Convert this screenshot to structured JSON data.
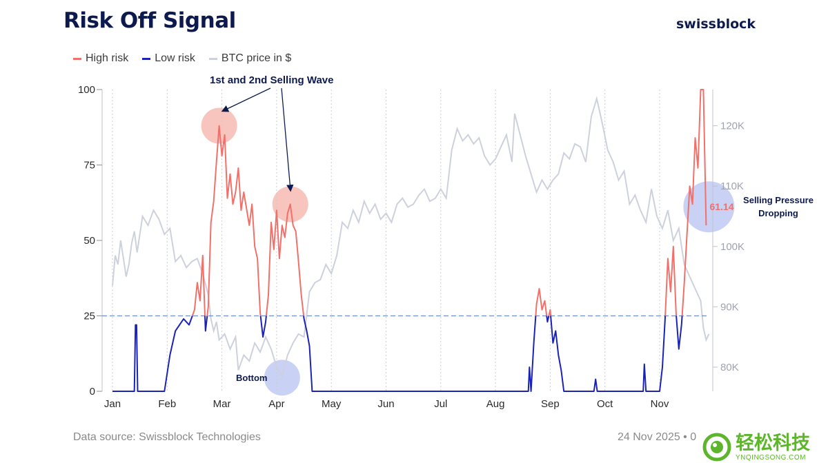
{
  "header": {
    "title": "Risk Off Signal",
    "brand": "swissblock"
  },
  "legend": [
    {
      "label": "High risk",
      "color": "#f0706a"
    },
    {
      "label": "Low risk",
      "color": "#1a23b4"
    },
    {
      "label": "BTC price in $",
      "color": "#cdd1dc"
    }
  ],
  "footer": {
    "source": "Data source: Swissblock Technologies",
    "date": "24 Nov 2025 • 0"
  },
  "watermark": {
    "cn": "轻松科技",
    "en": "YNQINGSONG.COM"
  },
  "chart_data": {
    "type": "line",
    "x_labels": [
      "Jan",
      "Feb",
      "Mar",
      "Apr",
      "May",
      "Jun",
      "Jul",
      "Aug",
      "Sep",
      "Oct",
      "Nov"
    ],
    "left_axis": {
      "ticks": [
        "0",
        "25",
        "50",
        "75",
        "100"
      ],
      "range": [
        0,
        100
      ]
    },
    "right_axis": {
      "ticks": [
        "80K",
        "90K",
        "100K",
        "110K",
        "120K"
      ],
      "range": [
        76000,
        126000
      ]
    },
    "threshold": 25,
    "risk_signal_points": [
      [
        0.0,
        0
      ],
      [
        0.4,
        0
      ],
      [
        0.42,
        22
      ],
      [
        0.44,
        22
      ],
      [
        0.46,
        0
      ],
      [
        0.95,
        0
      ],
      [
        1.05,
        12
      ],
      [
        1.15,
        20
      ],
      [
        1.3,
        24
      ],
      [
        1.4,
        22
      ],
      [
        1.5,
        27
      ],
      [
        1.55,
        36
      ],
      [
        1.6,
        30
      ],
      [
        1.65,
        45
      ],
      [
        1.7,
        20
      ],
      [
        1.75,
        28
      ],
      [
        1.8,
        56
      ],
      [
        1.85,
        63
      ],
      [
        1.9,
        76
      ],
      [
        1.95,
        88
      ],
      [
        2.0,
        78
      ],
      [
        2.05,
        85
      ],
      [
        2.1,
        64
      ],
      [
        2.15,
        72
      ],
      [
        2.2,
        62
      ],
      [
        2.25,
        66
      ],
      [
        2.3,
        74
      ],
      [
        2.35,
        60
      ],
      [
        2.4,
        66
      ],
      [
        2.5,
        55
      ],
      [
        2.55,
        62
      ],
      [
        2.6,
        48
      ],
      [
        2.65,
        44
      ],
      [
        2.7,
        26
      ],
      [
        2.75,
        18
      ],
      [
        2.8,
        23
      ],
      [
        2.85,
        32
      ],
      [
        2.9,
        56
      ],
      [
        2.95,
        47
      ],
      [
        3.0,
        60
      ],
      [
        3.05,
        44
      ],
      [
        3.1,
        55
      ],
      [
        3.15,
        51
      ],
      [
        3.2,
        59
      ],
      [
        3.25,
        62
      ],
      [
        3.3,
        55
      ],
      [
        3.35,
        53
      ],
      [
        3.4,
        43
      ],
      [
        3.45,
        32
      ],
      [
        3.5,
        24
      ],
      [
        3.55,
        20
      ],
      [
        3.6,
        15
      ],
      [
        3.65,
        0
      ],
      [
        7.6,
        0
      ],
      [
        7.62,
        8
      ],
      [
        7.65,
        0
      ],
      [
        7.7,
        16
      ],
      [
        7.75,
        29
      ],
      [
        7.8,
        34
      ],
      [
        7.85,
        27
      ],
      [
        7.9,
        30
      ],
      [
        7.95,
        23
      ],
      [
        8.0,
        27
      ],
      [
        8.05,
        16
      ],
      [
        8.1,
        20
      ],
      [
        8.15,
        12
      ],
      [
        8.2,
        7
      ],
      [
        8.25,
        0
      ],
      [
        8.8,
        0
      ],
      [
        8.83,
        4
      ],
      [
        8.86,
        0
      ],
      [
        9.7,
        0
      ],
      [
        9.72,
        9
      ],
      [
        9.75,
        0
      ],
      [
        10.0,
        0
      ],
      [
        10.05,
        8
      ],
      [
        10.1,
        24
      ],
      [
        10.15,
        44
      ],
      [
        10.2,
        33
      ],
      [
        10.25,
        48
      ],
      [
        10.3,
        26
      ],
      [
        10.35,
        14
      ],
      [
        10.4,
        22
      ],
      [
        10.45,
        36
      ],
      [
        10.5,
        52
      ],
      [
        10.55,
        68
      ],
      [
        10.6,
        62
      ],
      [
        10.65,
        84
      ],
      [
        10.7,
        74
      ],
      [
        10.75,
        100
      ],
      [
        10.8,
        100
      ],
      [
        10.85,
        55
      ]
    ],
    "btc_price_points": [
      [
        0.0,
        93500
      ],
      [
        0.05,
        98500
      ],
      [
        0.1,
        97000
      ],
      [
        0.15,
        101000
      ],
      [
        0.2,
        98000
      ],
      [
        0.25,
        95000
      ],
      [
        0.3,
        97000
      ],
      [
        0.35,
        100500
      ],
      [
        0.4,
        102500
      ],
      [
        0.45,
        99000
      ],
      [
        0.55,
        105000
      ],
      [
        0.65,
        103500
      ],
      [
        0.75,
        106000
      ],
      [
        0.85,
        104500
      ],
      [
        0.95,
        102000
      ],
      [
        1.05,
        103000
      ],
      [
        1.15,
        97500
      ],
      [
        1.25,
        98500
      ],
      [
        1.35,
        96500
      ],
      [
        1.45,
        97500
      ],
      [
        1.55,
        98000
      ],
      [
        1.65,
        95500
      ],
      [
        1.75,
        92000
      ],
      [
        1.8,
        88000
      ],
      [
        1.85,
        86000
      ],
      [
        1.9,
        87500
      ],
      [
        1.95,
        84500
      ],
      [
        2.05,
        85500
      ],
      [
        2.15,
        83000
      ],
      [
        2.25,
        85000
      ],
      [
        2.3,
        79500
      ],
      [
        2.4,
        82000
      ],
      [
        2.5,
        81000
      ],
      [
        2.6,
        84000
      ],
      [
        2.7,
        82500
      ],
      [
        2.8,
        85000
      ],
      [
        2.9,
        83000
      ],
      [
        3.0,
        80000
      ],
      [
        3.1,
        78500
      ],
      [
        3.2,
        82000
      ],
      [
        3.3,
        84000
      ],
      [
        3.4,
        85500
      ],
      [
        3.5,
        85000
      ],
      [
        3.6,
        92500
      ],
      [
        3.7,
        94000
      ],
      [
        3.8,
        94500
      ],
      [
        3.9,
        97000
      ],
      [
        4.0,
        95500
      ],
      [
        4.1,
        98500
      ],
      [
        4.2,
        104000
      ],
      [
        4.3,
        103000
      ],
      [
        4.4,
        106000
      ],
      [
        4.5,
        104000
      ],
      [
        4.6,
        107500
      ],
      [
        4.7,
        105500
      ],
      [
        4.8,
        107000
      ],
      [
        4.9,
        104500
      ],
      [
        5.0,
        105500
      ],
      [
        5.1,
        104000
      ],
      [
        5.2,
        107000
      ],
      [
        5.3,
        108000
      ],
      [
        5.4,
        106500
      ],
      [
        5.5,
        107000
      ],
      [
        5.6,
        108500
      ],
      [
        5.7,
        109500
      ],
      [
        5.8,
        107500
      ],
      [
        5.9,
        108000
      ],
      [
        6.0,
        109500
      ],
      [
        6.1,
        108000
      ],
      [
        6.2,
        116000
      ],
      [
        6.3,
        119500
      ],
      [
        6.4,
        117500
      ],
      [
        6.5,
        118500
      ],
      [
        6.6,
        117000
      ],
      [
        6.7,
        118000
      ],
      [
        6.8,
        115000
      ],
      [
        6.9,
        113500
      ],
      [
        7.0,
        114500
      ],
      [
        7.1,
        116500
      ],
      [
        7.2,
        118500
      ],
      [
        7.3,
        114000
      ],
      [
        7.35,
        122000
      ],
      [
        7.45,
        118500
      ],
      [
        7.55,
        115000
      ],
      [
        7.65,
        112000
      ],
      [
        7.75,
        109000
      ],
      [
        7.85,
        111000
      ],
      [
        7.95,
        109500
      ],
      [
        8.05,
        111000
      ],
      [
        8.15,
        112000
      ],
      [
        8.25,
        115500
      ],
      [
        8.35,
        114500
      ],
      [
        8.45,
        117000
      ],
      [
        8.55,
        116500
      ],
      [
        8.65,
        114000
      ],
      [
        8.75,
        121500
      ],
      [
        8.85,
        124500
      ],
      [
        8.95,
        120500
      ],
      [
        9.05,
        116000
      ],
      [
        9.15,
        114000
      ],
      [
        9.25,
        111000
      ],
      [
        9.35,
        112500
      ],
      [
        9.45,
        107000
      ],
      [
        9.55,
        108500
      ],
      [
        9.65,
        106000
      ],
      [
        9.75,
        104000
      ],
      [
        9.85,
        109500
      ],
      [
        9.95,
        105000
      ],
      [
        10.05,
        103000
      ],
      [
        10.15,
        106000
      ],
      [
        10.25,
        101000
      ],
      [
        10.35,
        103000
      ],
      [
        10.45,
        97000
      ],
      [
        10.55,
        95000
      ],
      [
        10.65,
        93000
      ],
      [
        10.75,
        91000
      ],
      [
        10.8,
        86500
      ],
      [
        10.85,
        84500
      ],
      [
        10.9,
        85500
      ]
    ],
    "markers": [
      {
        "x": 1.95,
        "y": 88,
        "color": "#f6b1a8"
      },
      {
        "x": 3.25,
        "y": 62,
        "color": "#f6b1a8"
      },
      {
        "x": 3.1,
        "y": 4.5,
        "color": "#b7c2f2"
      },
      {
        "x": 10.9,
        "y": 61.14,
        "color": "#b7c2f2"
      }
    ],
    "annotations": {
      "selling_wave": "1st and 2nd Selling Wave",
      "bottom": "Bottom",
      "pressure_line1": "Selling Pressure",
      "pressure_line2": "Dropping",
      "current_value": "61.14"
    }
  }
}
